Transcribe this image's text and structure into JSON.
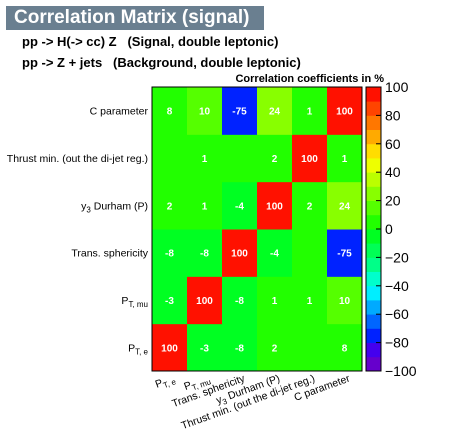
{
  "header": {
    "title": "Correlation Matrix (signal)",
    "subtitle_signal": "pp -> H(-> cc) Z   (Signal, double leptonic)",
    "subtitle_background": "pp -> Z + jets   (Background, double leptonic)"
  },
  "chart_data": {
    "type": "heatmap",
    "title": "Correlation coefficients in %",
    "variables": [
      {
        "name": "P",
        "sub": "T, e"
      },
      {
        "name": "P",
        "sub": "T, mu"
      },
      {
        "name": "Trans. sphericity",
        "sub": ""
      },
      {
        "name": "y",
        "sub": "3",
        "suffix": " Durham (P)"
      },
      {
        "name": "Thrust min. (out the di-jet reg.)",
        "sub": ""
      },
      {
        "name": "C parameter",
        "sub": ""
      }
    ],
    "matrix": [
      [
        100,
        -3,
        -8,
        2,
        null,
        8
      ],
      [
        -3,
        100,
        -8,
        1,
        1,
        10
      ],
      [
        -8,
        -8,
        100,
        -4,
        null,
        -75
      ],
      [
        2,
        1,
        -4,
        100,
        2,
        24
      ],
      [
        null,
        1,
        null,
        2,
        100,
        1
      ],
      [
        8,
        10,
        -75,
        24,
        1,
        100
      ]
    ],
    "zlim": [
      -100,
      100
    ],
    "colorbar_ticks": [
      "100",
      "80",
      "60",
      "40",
      "20",
      "0",
      "−20",
      "−40",
      "−60",
      "−80",
      "−100"
    ],
    "palette": [
      "#6600cc",
      "#4400ee",
      "#0022ff",
      "#0066ff",
      "#00aaff",
      "#00eeff",
      "#00ffcc",
      "#00ff88",
      "#00ff55",
      "#00ff22",
      "#22ff00",
      "#55ff00",
      "#88ff00",
      "#bbff00",
      "#eeff00",
      "#ffdd00",
      "#ffaa00",
      "#ff7700",
      "#ff4400",
      "#ff1100"
    ]
  }
}
